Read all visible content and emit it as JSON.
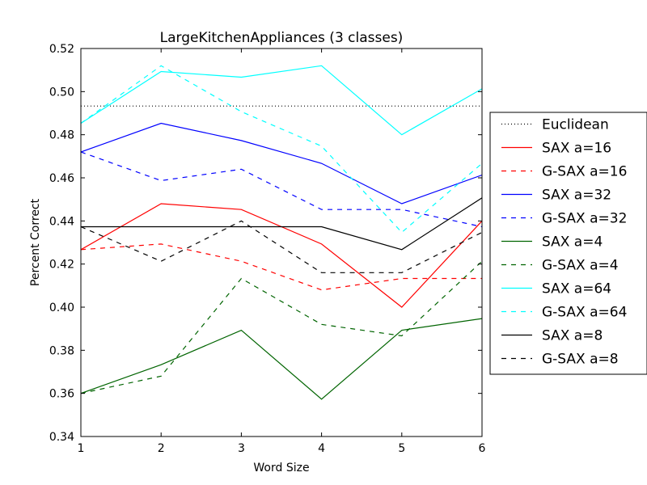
{
  "chart_data": {
    "type": "line",
    "title": "LargeKitchenAppliances (3 classes)",
    "xlabel": "Word Size",
    "ylabel": "Percent Correct",
    "xlim": [
      1,
      6
    ],
    "ylim": [
      0.34,
      0.52
    ],
    "x_ticks": [
      "1",
      "2",
      "3",
      "4",
      "5",
      "6"
    ],
    "y_ticks": [
      "0.34",
      "0.36",
      "0.38",
      "0.40",
      "0.42",
      "0.44",
      "0.46",
      "0.48",
      "0.50",
      "0.52"
    ],
    "grid": false,
    "legend_position": "right outside",
    "x": [
      1,
      2,
      3,
      4,
      5,
      6
    ],
    "series": [
      {
        "name": "Euclidean",
        "color": "#000000",
        "style": "dotted",
        "values": [
          0.4933,
          0.4933,
          0.4933,
          0.4933,
          0.4933,
          0.4933
        ]
      },
      {
        "name": "SAX a=16",
        "color": "#ff0000",
        "style": "solid",
        "values": [
          0.4267,
          0.448,
          0.4453,
          0.4293,
          0.4,
          0.44
        ]
      },
      {
        "name": "G-SAX a=16",
        "color": "#ff0000",
        "style": "dashed",
        "values": [
          0.4267,
          0.4293,
          0.4213,
          0.408,
          0.4133,
          0.4133
        ]
      },
      {
        "name": "SAX a=32",
        "color": "#0000ff",
        "style": "solid",
        "values": [
          0.472,
          0.4853,
          0.4773,
          0.4667,
          0.448,
          0.4613
        ]
      },
      {
        "name": "G-SAX a=32",
        "color": "#0000ff",
        "style": "dashed",
        "values": [
          0.472,
          0.4587,
          0.464,
          0.4453,
          0.4453,
          0.4373
        ]
      },
      {
        "name": "SAX a=4",
        "color": "#006400",
        "style": "solid",
        "values": [
          0.36,
          0.3733,
          0.3893,
          0.3573,
          0.3893,
          0.3947
        ]
      },
      {
        "name": "G-SAX a=4",
        "color": "#006400",
        "style": "dashed",
        "values": [
          0.36,
          0.368,
          0.4133,
          0.392,
          0.3867,
          0.4213
        ]
      },
      {
        "name": "SAX a=64",
        "color": "#00ffff",
        "style": "solid",
        "values": [
          0.4853,
          0.5093,
          0.5067,
          0.512,
          0.48,
          0.5013
        ]
      },
      {
        "name": "G-SAX a=64",
        "color": "#00ffff",
        "style": "dashed",
        "values": [
          0.4853,
          0.512,
          0.4907,
          0.4747,
          0.4347,
          0.4667
        ]
      },
      {
        "name": "SAX a=8",
        "color": "#000000",
        "style": "solid",
        "values": [
          0.4373,
          0.4373,
          0.4373,
          0.4373,
          0.4267,
          0.4507
        ]
      },
      {
        "name": "G-SAX a=8",
        "color": "#000000",
        "style": "dashed",
        "values": [
          0.4373,
          0.4213,
          0.44,
          0.416,
          0.416,
          0.4347
        ]
      }
    ]
  }
}
